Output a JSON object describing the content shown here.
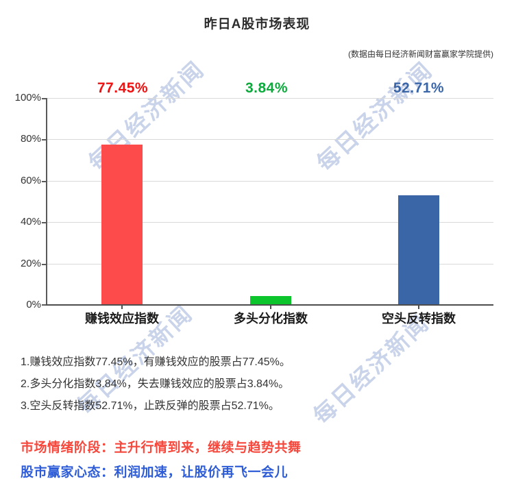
{
  "title": "昨日A股市场表现",
  "subtitle": "(数据由每日经济新闻财富赢家学院提供)",
  "watermark": {
    "text": "每日经济新闻",
    "color": "#bcc9e4"
  },
  "chart_data": {
    "type": "bar",
    "title": "昨日A股市场表现",
    "source_note": "(数据由每日经济新闻财富赢家学院提供)",
    "categories": [
      "赚钱效应指数",
      "多头分化指数",
      "空头反转指数"
    ],
    "values": [
      77.45,
      3.84,
      52.71
    ],
    "value_labels": [
      "77.45%",
      "3.84%",
      "52.71%"
    ],
    "bar_colors": [
      "#fd4a4a",
      "#0cc52d",
      "#3a66a8"
    ],
    "label_colors": [
      "#ee1111",
      "#0caa3c",
      "#3a66a8"
    ],
    "xlabel": "",
    "ylabel": "",
    "ylim": [
      0,
      100
    ],
    "yticks": [
      "0%",
      "20%",
      "40%",
      "60%",
      "80%",
      "100%"
    ],
    "grid": true,
    "legend": false
  },
  "notes": [
    "1.赚钱效应指数77.45%，有赚钱效应的股票占77.45%。",
    "2.多头分化指数3.84%，失去赚钱效应的股票占3.84%。",
    "3.空头反转指数52.71%，止跌反弹的股票占52.71%。"
  ],
  "footer": {
    "lines": [
      {
        "text": "市场情绪阶段：主升行情到来，继续与趋势共舞",
        "color": "#f5483d"
      },
      {
        "text": "股市赢家心态：利润加速，让股价再飞一会儿",
        "color": "#2d5cd6"
      }
    ]
  }
}
